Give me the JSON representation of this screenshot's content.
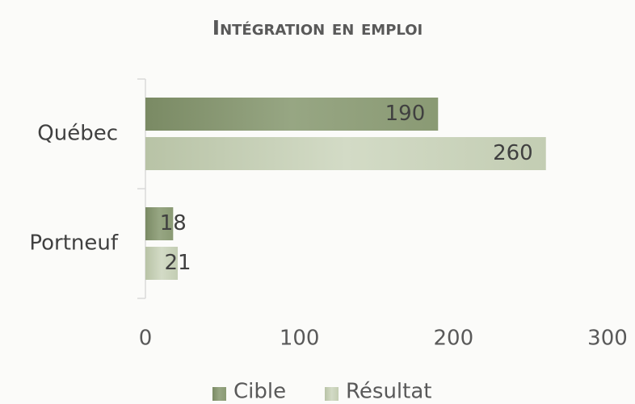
{
  "chart_data": {
    "type": "bar",
    "orientation": "horizontal",
    "title": "Intégration en emploi",
    "categories": [
      "Québec",
      "Portneuf"
    ],
    "series": [
      {
        "name": "Cible",
        "color": "#8a9a74",
        "values": [
          190,
          18
        ]
      },
      {
        "name": "Résultat",
        "color": "#c7d1b8",
        "values": [
          260,
          21
        ]
      }
    ],
    "xlim": [
      0,
      300
    ],
    "xticks": [
      0,
      100,
      200,
      300
    ],
    "legend": "bottom"
  }
}
